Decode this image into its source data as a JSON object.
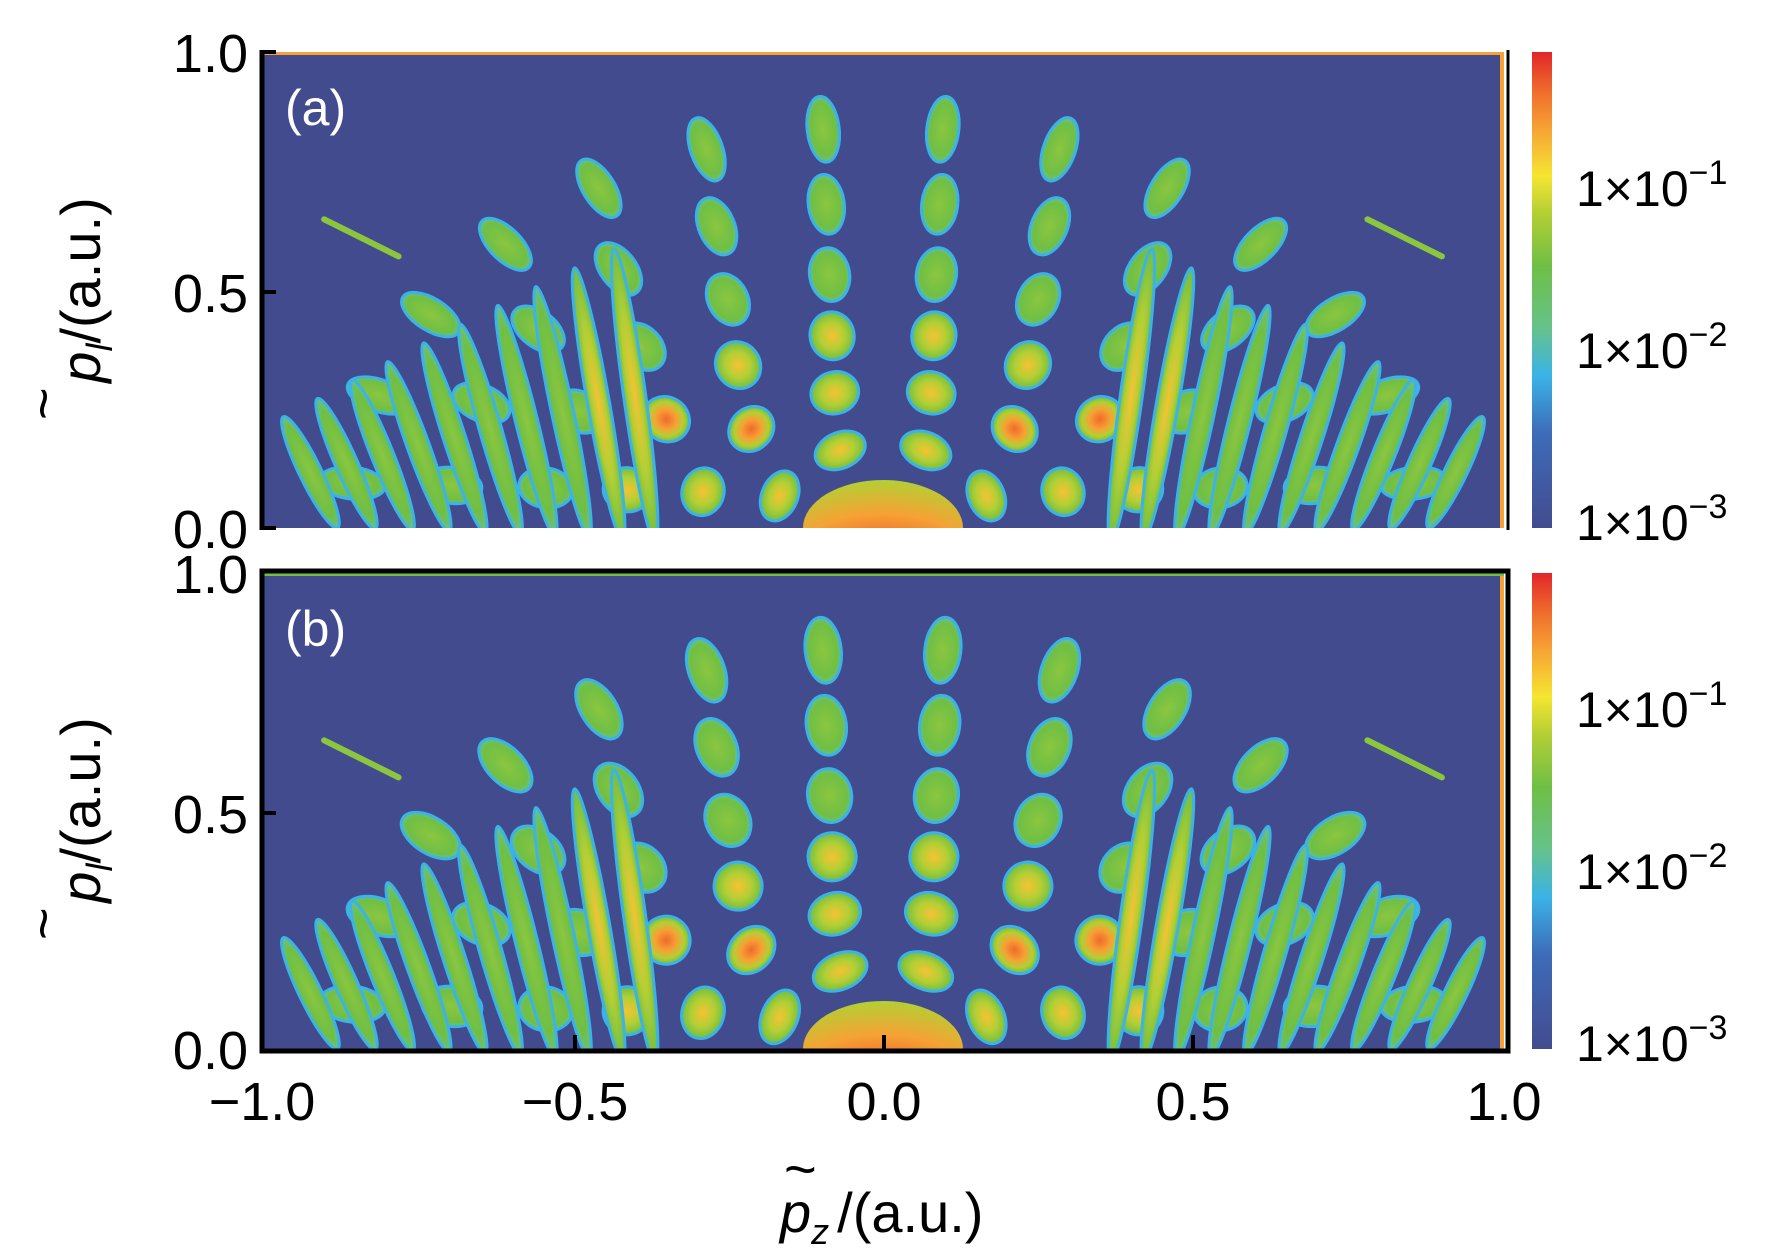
{
  "chart_data": [
    {
      "type": "heatmap",
      "panel_label": "(a)",
      "x_range": [
        -1.0,
        1.0
      ],
      "y_range": [
        0.0,
        1.0
      ],
      "y_ticks": [
        "1.0",
        "0.5",
        "0.0"
      ],
      "ylabel_symbol": "p",
      "ylabel_subscript": "l",
      "ylabel_unit": "/(a.u.)",
      "ylabel_tilde": "~",
      "colorbar_scale": "log",
      "colorbar_ticks": [
        {
          "mantissa": "1×10",
          "exponent": "−1"
        },
        {
          "mantissa": "1×10",
          "exponent": "−2"
        },
        {
          "mantissa": "1×10",
          "exponent": "−3"
        }
      ]
    },
    {
      "type": "heatmap",
      "panel_label": "(b)",
      "x_range": [
        -1.0,
        1.0
      ],
      "y_range": [
        0.0,
        1.0
      ],
      "x_ticks": [
        "−1.0",
        "−0.5",
        "0.0",
        "0.5",
        "1.0"
      ],
      "y_ticks": [
        "1.0",
        "0.5",
        "0.0"
      ],
      "ylabel_symbol": "p",
      "ylabel_subscript": "l",
      "ylabel_unit": "/(a.u.)",
      "ylabel_tilde": "~",
      "xlabel_symbol": "p",
      "xlabel_subscript": "z",
      "xlabel_unit": "/(a.u.)",
      "xlabel_tilde": "~",
      "colorbar_scale": "log",
      "colorbar_ticks": [
        {
          "mantissa": "1×10",
          "exponent": "−1"
        },
        {
          "mantissa": "1×10",
          "exponent": "−2"
        },
        {
          "mantissa": "1×10",
          "exponent": "−3"
        }
      ]
    }
  ],
  "colors": {
    "background_low": "#434b8f",
    "colormap": [
      "#434b8f",
      "#3d6cb8",
      "#3bb3e6",
      "#66c28a",
      "#6fbf45",
      "#b3cf34",
      "#f6e532",
      "#f6a234",
      "#ef6a2c",
      "#e2262a"
    ]
  }
}
